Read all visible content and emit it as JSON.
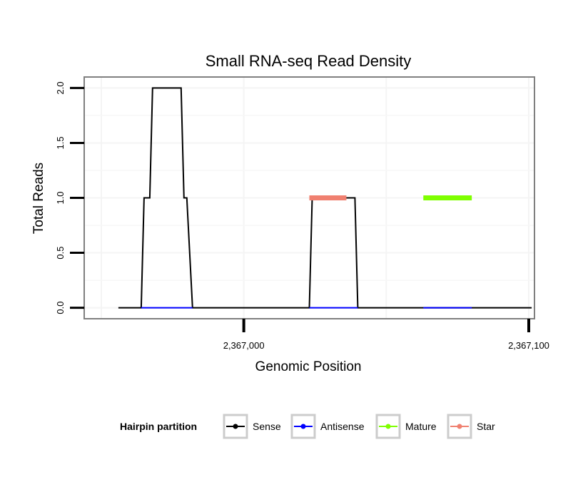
{
  "chart_data": {
    "type": "line",
    "title": "Small RNA-seq Read Density",
    "xlabel": "Genomic Position",
    "ylabel": "Total Reads",
    "xlim": [
      2366944,
      2367102
    ],
    "ylim": [
      -0.1,
      2.1
    ],
    "x_ticks": [
      2367000,
      2367100
    ],
    "x_tick_labels": [
      "2,367,000",
      "2,367,100"
    ],
    "y_ticks": [
      0,
      0.5,
      1,
      1.5,
      2
    ],
    "y_tick_labels": [
      "0.0",
      "0.5",
      "1.0",
      "1.5",
      "2.0"
    ],
    "x_gridlines": [
      2366950,
      2367000,
      2367050,
      2367100
    ],
    "grid": true,
    "legend": {
      "title": "Hairpin partition",
      "position": "bottom",
      "entries": [
        {
          "label": "Sense",
          "color": "#000000"
        },
        {
          "label": "Antisense",
          "color": "#0000ff"
        },
        {
          "label": "Mature",
          "color": "#7fff00"
        },
        {
          "label": "Star",
          "color": "#f08070"
        }
      ]
    },
    "series": [
      {
        "name": "Sense",
        "color": "#000000",
        "x": [
          2366956,
          2366964,
          2366965,
          2366967,
          2366968,
          2366978,
          2366979,
          2366980,
          2366982,
          2366991,
          2366992,
          2367002,
          2367003,
          2367012,
          2367014,
          2367023,
          2367024,
          2367039,
          2367040,
          2367048,
          2367050,
          2367063,
          2367064,
          2367101
        ],
        "values": [
          0,
          0,
          1,
          1,
          2,
          2,
          1,
          1,
          0,
          0,
          0,
          0,
          0,
          0,
          0,
          0,
          1,
          1,
          0,
          0,
          0,
          0,
          0,
          0
        ]
      },
      {
        "name": "Antisense",
        "color": "#0000ff",
        "x": [
          2366964,
          2366982,
          2367023,
          2367040,
          2367063,
          2367080
        ],
        "values": [
          0,
          0,
          0,
          0,
          0,
          0
        ],
        "segments": [
          [
            2366964,
            2366982
          ],
          [
            2367023,
            2367040
          ],
          [
            2367063,
            2367080
          ]
        ]
      },
      {
        "name": "Mature",
        "color": "#7fff00",
        "x": [
          2367063,
          2367080
        ],
        "values": [
          1,
          1
        ]
      },
      {
        "name": "Star",
        "color": "#f08070",
        "x": [
          2367023,
          2367036
        ],
        "values": [
          1,
          1
        ]
      }
    ]
  }
}
